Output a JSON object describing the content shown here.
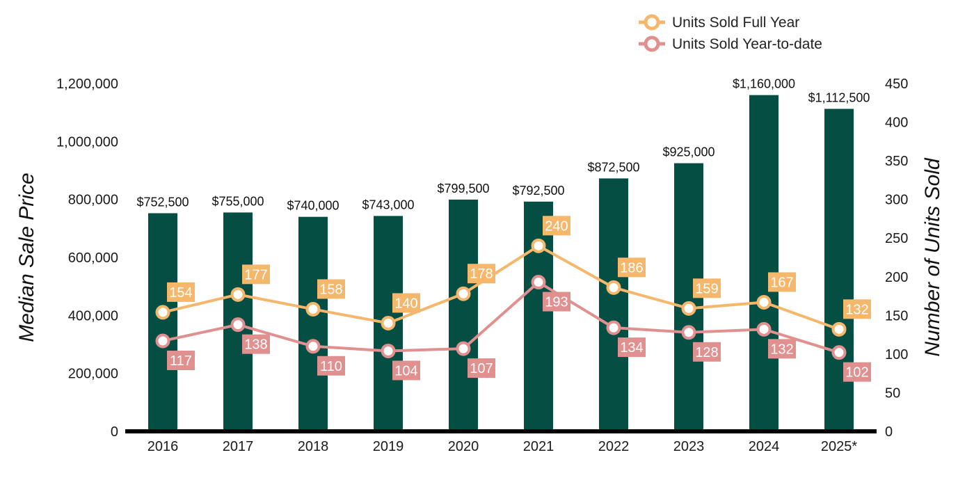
{
  "chart_data": {
    "type": "bar",
    "categories": [
      "2016",
      "2017",
      "2018",
      "2019",
      "2020",
      "2021",
      "2022",
      "2023",
      "2024",
      "2025*"
    ],
    "bars": {
      "values": [
        752500,
        755000,
        740000,
        743000,
        799500,
        792500,
        872500,
        925000,
        1160000,
        1112500
      ],
      "labels": [
        "$752,500",
        "$755,000",
        "$740,000",
        "$743,000",
        "$799,500",
        "$792,500",
        "$872,500",
        "$925,000",
        "$1,160,000",
        "$1,112,500"
      ],
      "color": "#044e44",
      "axis": "left"
    },
    "series": [
      {
        "name": "Units Sold Full Year",
        "type": "line",
        "axis": "right",
        "values": [
          154,
          177,
          158,
          140,
          178,
          240,
          186,
          159,
          167,
          132
        ],
        "color": "#f5b76c",
        "label_position": "above"
      },
      {
        "name": "Units Sold Year-to-date",
        "type": "line",
        "axis": "right",
        "values": [
          117,
          138,
          110,
          104,
          107,
          193,
          134,
          128,
          132,
          102
        ],
        "color": "#e19090",
        "label_position": "below"
      }
    ],
    "y_left": {
      "label": "Median Sale Price",
      "ylim": [
        0,
        1200000
      ],
      "ticks": [
        "0",
        "200,000",
        "400,000",
        "600,000",
        "800,000",
        "1,000,000",
        "1,200,000"
      ],
      "tick_values": [
        0,
        200000,
        400000,
        600000,
        800000,
        1000000,
        1200000
      ]
    },
    "y_right": {
      "label": "Number of Units Sold",
      "ylim": [
        0,
        450
      ],
      "ticks": [
        "0",
        "50",
        "100",
        "150",
        "200",
        "250",
        "300",
        "350",
        "400",
        "450"
      ],
      "tick_values": [
        0,
        50,
        100,
        150,
        200,
        250,
        300,
        350,
        400,
        450
      ]
    },
    "grid": false,
    "legend_position": "top-right"
  }
}
